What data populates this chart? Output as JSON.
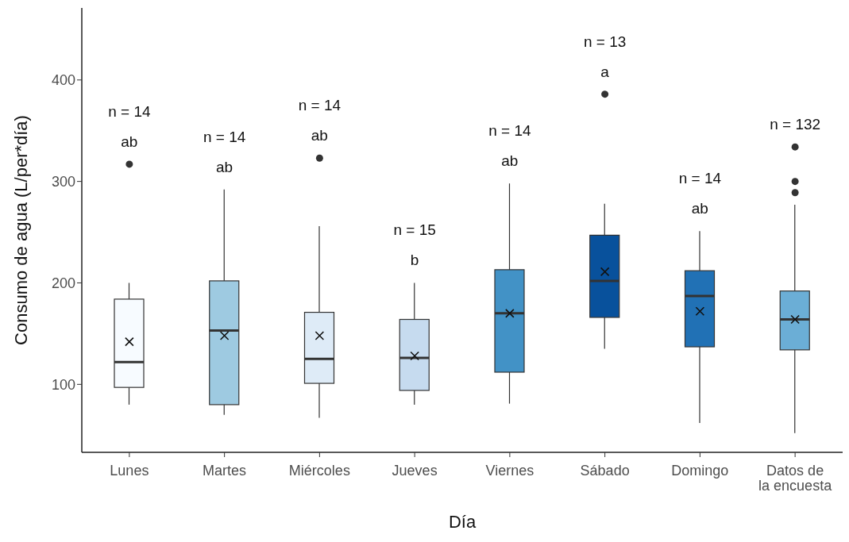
{
  "chart_data": {
    "type": "box",
    "xlabel": "Día",
    "ylabel": "Consumo de agua (L/per*día)",
    "categories": [
      "Lunes",
      "Martes",
      "Miércoles",
      "Jueves",
      "Viernes",
      "Sábado",
      "Domingo",
      "Datos de\nla encuesta"
    ],
    "colors": [
      "#f7fbff",
      "#9ecae1",
      "#deebf7",
      "#c6dbef",
      "#4292c6",
      "#08519c",
      "#2171b5",
      "#6baed6"
    ],
    "boxes": [
      {
        "low": 80,
        "q1": 97,
        "median": 122,
        "q3": 184,
        "high": 200,
        "mean": 142,
        "outliers": [
          317
        ]
      },
      {
        "low": 70,
        "q1": 80,
        "median": 153,
        "q3": 202,
        "high": 292,
        "mean": 148
      },
      {
        "low": 67,
        "q1": 101,
        "median": 125,
        "q3": 171,
        "high": 256,
        "mean": 148,
        "outliers": [
          323
        ]
      },
      {
        "low": 80,
        "q1": 94,
        "median": 126,
        "q3": 164,
        "high": 200,
        "mean": 128
      },
      {
        "low": 81,
        "q1": 112,
        "median": 170,
        "q3": 213,
        "high": 298,
        "mean": 170
      },
      {
        "low": 135,
        "q1": 166,
        "median": 202,
        "q3": 247,
        "high": 278,
        "mean": 211,
        "outliers": [
          386
        ]
      },
      {
        "low": 62,
        "q1": 137,
        "median": 187,
        "q3": 212,
        "high": 251,
        "mean": 172
      },
      {
        "low": 52,
        "q1": 134,
        "median": 164,
        "q3": 192,
        "high": 277,
        "mean": 164,
        "outliers": [
          334,
          300,
          289
        ]
      }
    ],
    "ylim": [
      33,
      471
    ],
    "yticks": [
      100,
      200,
      300,
      400
    ],
    "grid": false,
    "legend": false,
    "annotations": [
      "n = 14\nab",
      "n = 14\nab",
      "n = 14\nab",
      "n = 15\nb",
      "n = 14\nab",
      "n = 13\na",
      "n = 14\nab",
      "n = 132"
    ]
  }
}
